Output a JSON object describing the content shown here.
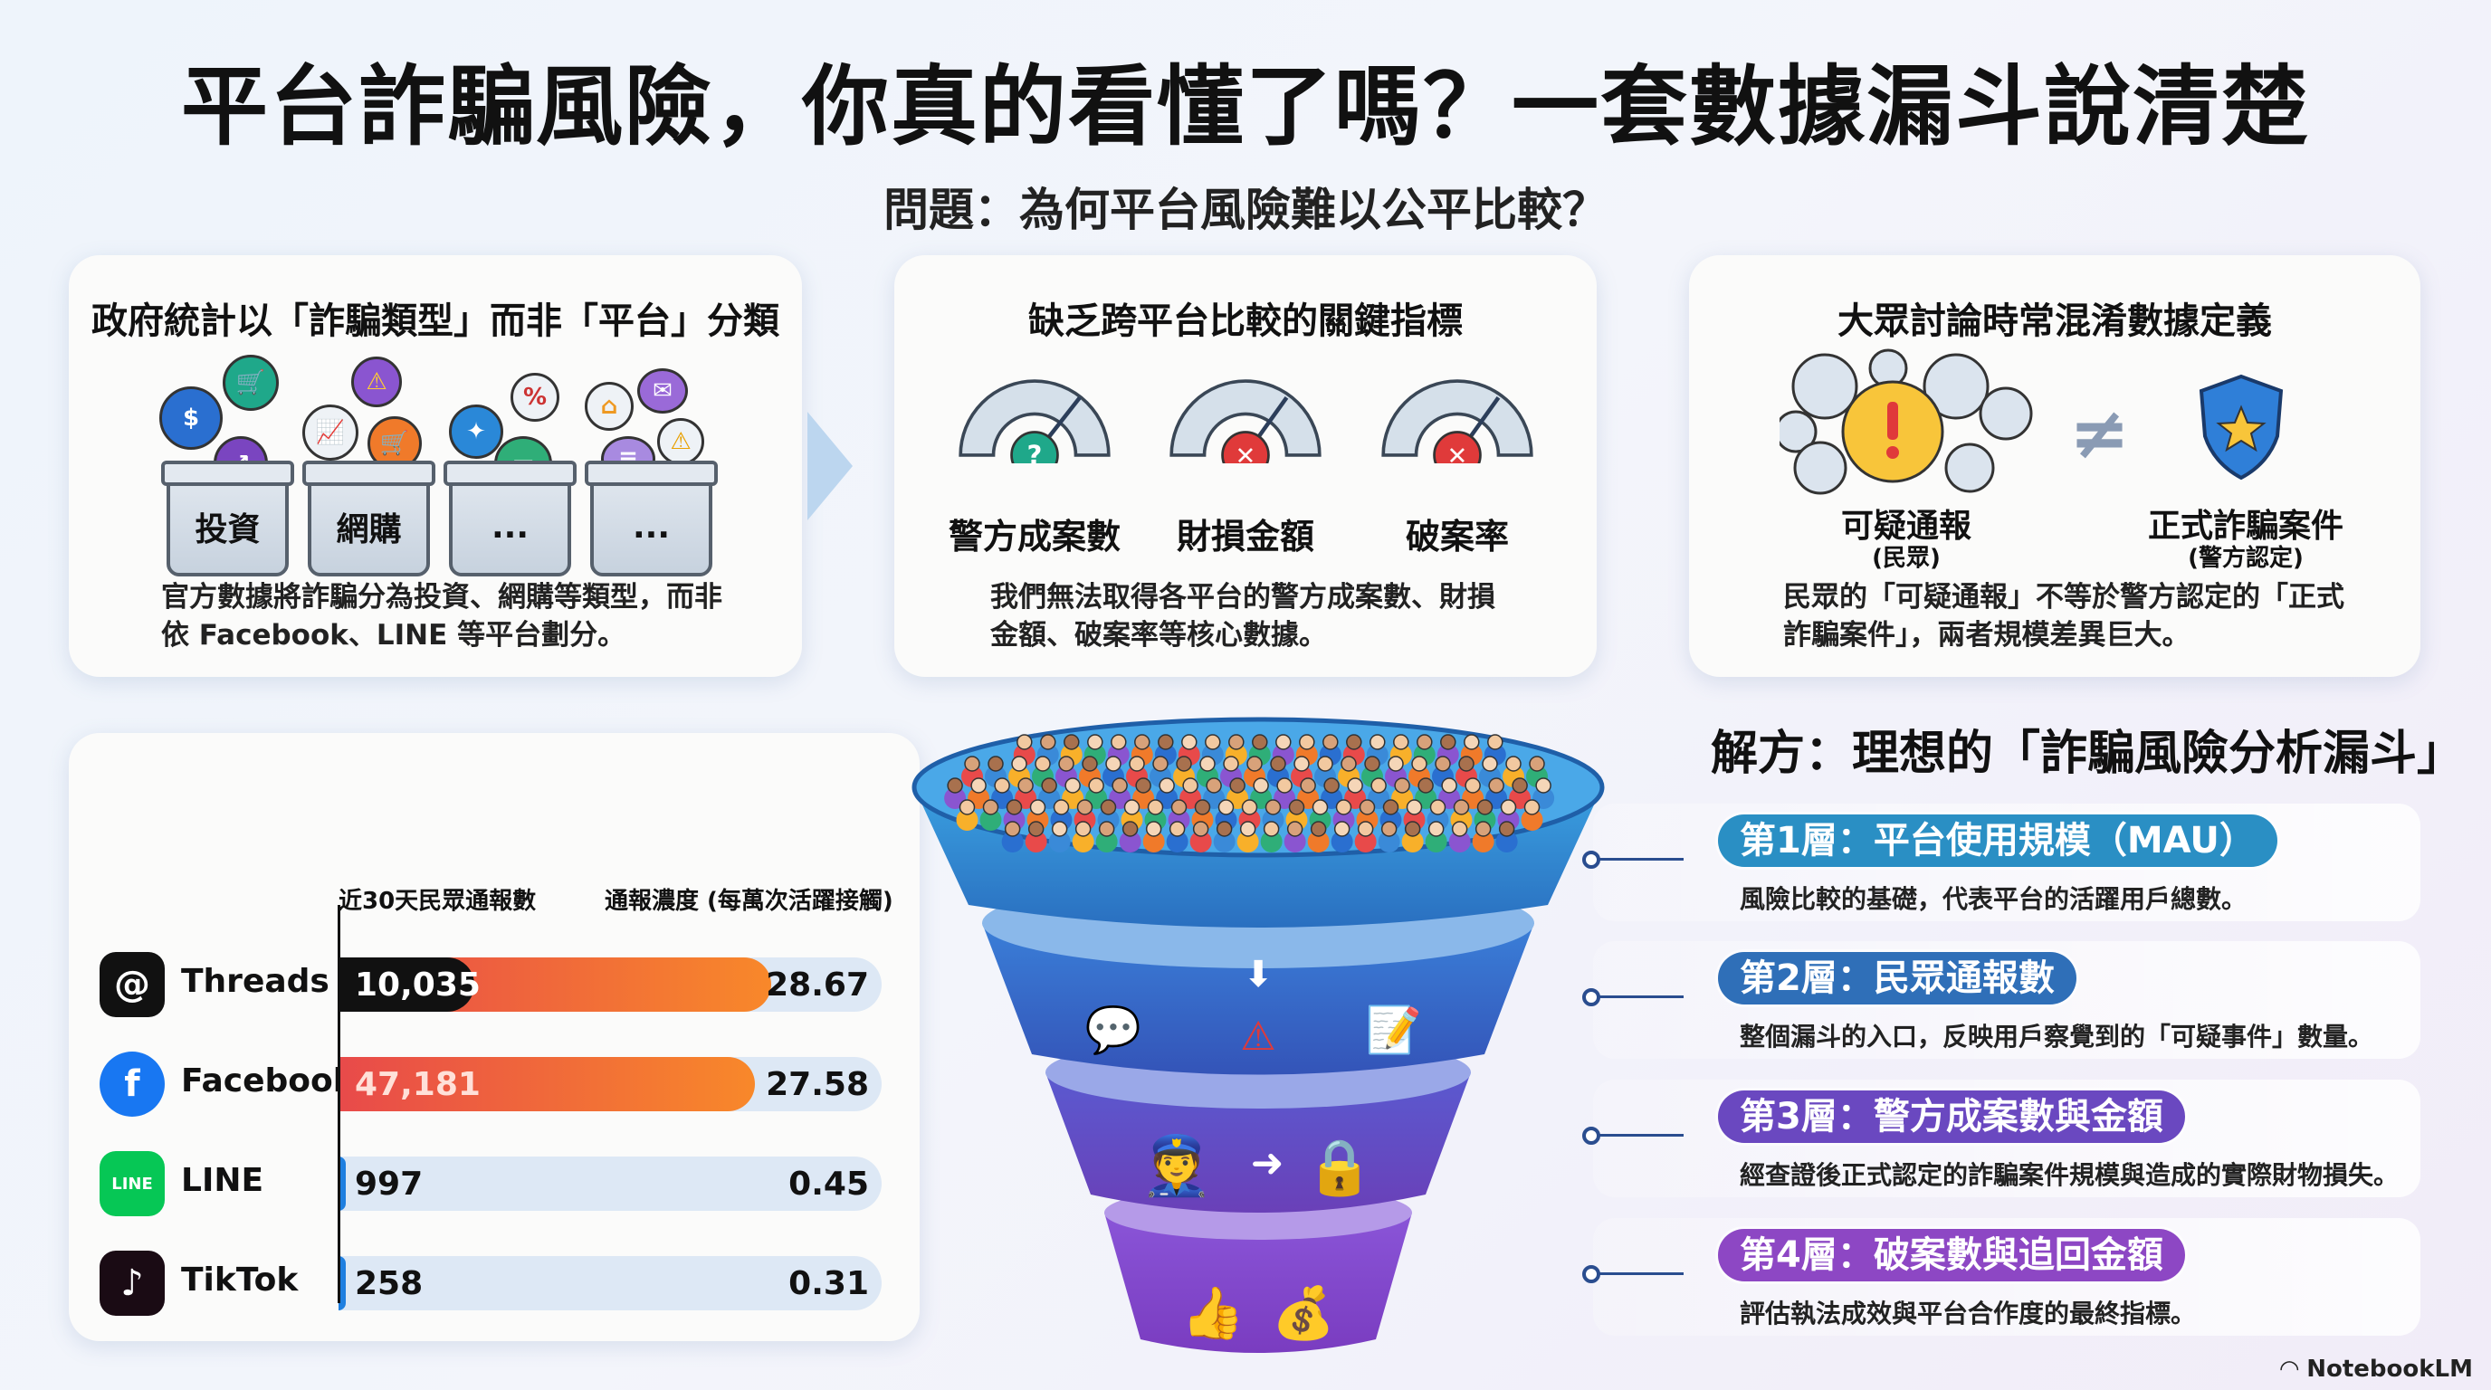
{
  "title": "平台詐騙風險，你真的看懂了嗎？一套數據漏斗說清楚",
  "subtitle": "問題：為何平台風險難以公平比較？",
  "cards": [
    {
      "heading": "政府統計以「詐騙類型」而非「平台」分類",
      "bins": [
        "投資",
        "網購",
        "...",
        "..."
      ],
      "text": "官方數據將詐騙分為投資、網購等類型，而非依 Facebook、LINE 等平台劃分。"
    },
    {
      "heading": "缺乏跨平台比較的關鍵指標",
      "gauges": [
        {
          "label": "警方成案數",
          "status": "unknown",
          "icon": "question-icon"
        },
        {
          "label": "財損金額",
          "status": "missing",
          "icon": "x-icon"
        },
        {
          "label": "破案率",
          "status": "missing",
          "icon": "x-icon"
        }
      ],
      "text": "我們無法取得各平台的警方成案數、財損金額、破案率等核心數據。"
    },
    {
      "heading": "大眾討論時常混淆數據定義",
      "left_label": "可疑通報",
      "left_sub": "(民眾)",
      "neq": "≠",
      "right_label": "正式詐騙案件",
      "right_sub": "(警方認定)",
      "text": "民眾的「可疑通報」不等於警方認定的「正式詐騙案件」，兩者規模差異巨大。"
    }
  ],
  "chart_data": {
    "type": "bar",
    "col_headers": [
      "近30天民眾通報數",
      "通報濃度 (每萬次活躍接觸)"
    ],
    "categories": [
      "Threads",
      "Facebook",
      "LINE",
      "TikTok"
    ],
    "series": [
      {
        "name": "近30天民眾通報數",
        "values": [
          10035,
          47181,
          997,
          258
        ],
        "labels": [
          "10,035",
          "47,181",
          "997",
          "258"
        ]
      },
      {
        "name": "通報濃度 (每萬次活躍接觸)",
        "values": [
          28.67,
          27.58,
          0.45,
          0.31
        ],
        "labels": [
          "28.67",
          "27.58",
          "0.45",
          "0.31"
        ]
      }
    ],
    "colors": {
      "threads": "#111111",
      "facebook": "#1877f2",
      "line": "#06c755",
      "tiktok": "#1a0b14",
      "bar_start": "#e84a4a",
      "bar_end": "#f8882a",
      "track": "#dde8f5",
      "low": "#1e7fe0"
    }
  },
  "solution": {
    "title": "解方：理想的「詐騙風險分析漏斗」",
    "layers": [
      {
        "label": "第1層：平台使用規模（MAU）",
        "desc": "風險比較的基礎，代表平台的活躍用戶總數。",
        "color": "#2a8fc4"
      },
      {
        "label": "第2層：民眾通報數",
        "desc": "整個漏斗的入口，反映用戶察覺到的「可疑事件」數量。",
        "color": "#2f6fb8"
      },
      {
        "label": "第3層：警方成案數與金額",
        "desc": "經查證後正式認定的詐騙案件規模與造成的實際財物損失。",
        "color": "#6a48c0"
      },
      {
        "label": "第4層：破案數與追回金額",
        "desc": "評估執法成效與平台合作度的最終指標。",
        "color": "#8d47c4"
      }
    ]
  },
  "brand": "NotebookLM"
}
